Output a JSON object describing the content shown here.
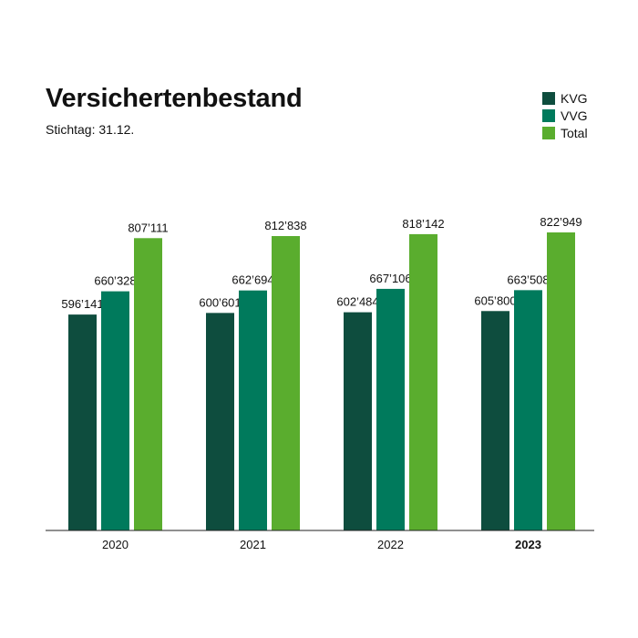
{
  "header": {
    "title": "Versichertenbestand",
    "subtitle": "Stichtag: 31.12."
  },
  "legend": [
    {
      "label": "KVG",
      "color": "#0e4d3e"
    },
    {
      "label": "VVG",
      "color": "#007a5c"
    },
    {
      "label": "Total",
      "color": "#5aad2e"
    }
  ],
  "chart_data": {
    "type": "bar",
    "title": "Versichertenbestand",
    "subtitle": "Stichtag: 31.12.",
    "categories": [
      "2020",
      "2021",
      "2022",
      "2023"
    ],
    "highlight_category": "2023",
    "series": [
      {
        "name": "KVG",
        "color": "#0e4d3e",
        "values": [
          596141,
          600601,
          602484,
          605800
        ],
        "labels": [
          "596’141",
          "600’601",
          "602’484",
          "605’800"
        ]
      },
      {
        "name": "VVG",
        "color": "#007a5c",
        "values": [
          660328,
          662694,
          667106,
          663508
        ],
        "labels": [
          "660’328",
          "662’694",
          "667’106",
          "663’508"
        ]
      },
      {
        "name": "Total",
        "color": "#5aad2e",
        "values": [
          807111,
          812838,
          818142,
          822949
        ],
        "labels": [
          "807’111",
          "812’838",
          "818’142",
          "822’949"
        ]
      }
    ],
    "ylim": [
      0,
      822949
    ],
    "grid": false,
    "legend_position": "top-right"
  }
}
